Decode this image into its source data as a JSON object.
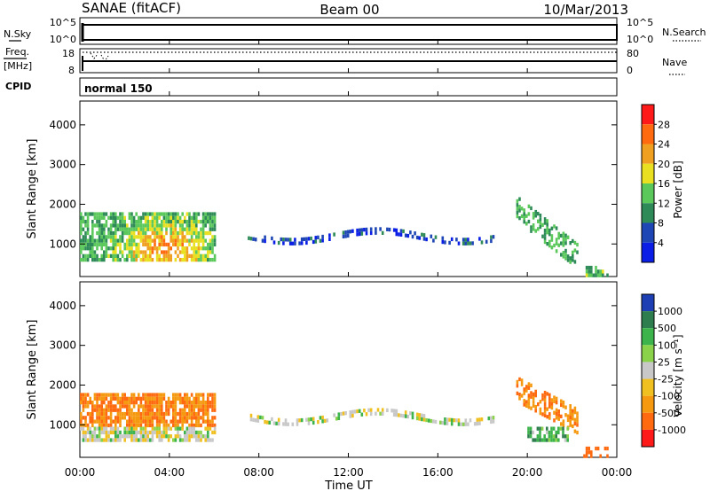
{
  "header": {
    "station": "SANAE (fitACF)",
    "beam": "Beam 00",
    "date": "10/Mar/2013"
  },
  "panels": {
    "nsky": {
      "left_label": "N.Sky",
      "right_label": "N.Search",
      "left_ticks": [
        "10^5",
        "10^0"
      ],
      "right_ticks": [
        "10^5",
        "10^0"
      ]
    },
    "freq": {
      "left_label_1": "Freq.",
      "left_label_2": "[MHz]",
      "right_label": "Nave",
      "left_ticks": [
        "18",
        "8"
      ],
      "right_ticks": [
        "80",
        "0"
      ]
    },
    "cpid": {
      "label": "CPID",
      "value": "normal 150"
    }
  },
  "colorbars": {
    "power": {
      "label": "Power [dB]",
      "ticks": [
        "4",
        "8",
        "12",
        "16",
        "20",
        "24",
        "28"
      ],
      "colors": [
        "#0a1ee6",
        "#1e46b4",
        "#2e8b57",
        "#5ac85a",
        "#e8e020",
        "#f0a020",
        "#ff6a10",
        "#ff1a1a"
      ]
    },
    "velocity": {
      "label": "Velocity [m s⁻¹]",
      "ticks": [
        "1000",
        "500",
        "100",
        "25",
        "-25",
        "-100",
        "-500",
        "-1000"
      ],
      "colors": [
        "#1e3fb4",
        "#2e7d4f",
        "#3cb44b",
        "#8ad24a",
        "#c8c8c8",
        "#f0c020",
        "#f59a10",
        "#ff6a10",
        "#ff1a1a"
      ]
    }
  },
  "axes": {
    "ylabel": "Slant Range [km]",
    "xlabel": "Time UT",
    "yticks": [
      "1000",
      "2000",
      "3000",
      "4000"
    ],
    "xticks": [
      "00:00",
      "04:00",
      "08:00",
      "12:00",
      "16:00",
      "20:00",
      "00:00"
    ]
  },
  "chart_data": [
    {
      "type": "heatmap",
      "title": "Power",
      "xlabel": "Time UT",
      "ylabel": "Slant Range [km]",
      "xlim": [
        0,
        24
      ],
      "ylim": [
        180,
        4600
      ],
      "color_scale": [
        4,
        28
      ],
      "echo_regions": [
        {
          "t_start": 0.0,
          "t_end": 6.0,
          "r_low": 600,
          "r_high": 1800,
          "power_typical": 12,
          "power_peak": 24,
          "peak_time": 3.8,
          "peak_range": 950
        },
        {
          "t_start": 7.5,
          "t_end": 18.5,
          "r_low": 900,
          "r_high": 1500,
          "power_typical": 6
        },
        {
          "t_start": 19.5,
          "t_end": 22.2,
          "r_low": 500,
          "r_high": 2000,
          "power_typical": 12
        },
        {
          "t_start": 22.5,
          "t_end": 23.6,
          "r_low": 250,
          "r_high": 450,
          "power_typical": 14
        }
      ]
    },
    {
      "type": "heatmap",
      "title": "Velocity",
      "xlabel": "Time UT",
      "ylabel": "Slant Range [km]",
      "xlim": [
        0,
        24
      ],
      "ylim": [
        180,
        4600
      ],
      "color_scale": [
        -1000,
        1000
      ],
      "echo_regions": [
        {
          "t_start": 0.0,
          "t_end": 6.0,
          "r_low": 950,
          "r_high": 1800,
          "velocity_typical": -300
        },
        {
          "t_start": 0.0,
          "t_end": 6.0,
          "r_low": 600,
          "r_high": 950,
          "velocity_typical": 0
        },
        {
          "t_start": 7.5,
          "t_end": 18.5,
          "r_low": 900,
          "r_high": 1500,
          "velocity_typical": 0
        },
        {
          "t_start": 19.5,
          "t_end": 22.2,
          "r_low": 1000,
          "r_high": 2000,
          "velocity_typical": -300
        },
        {
          "t_start": 20.0,
          "t_end": 21.8,
          "r_low": 600,
          "r_high": 950,
          "velocity_typical": 80
        },
        {
          "t_start": 22.5,
          "t_end": 23.6,
          "r_low": 250,
          "r_high": 450,
          "velocity_typical": -400
        }
      ]
    }
  ]
}
